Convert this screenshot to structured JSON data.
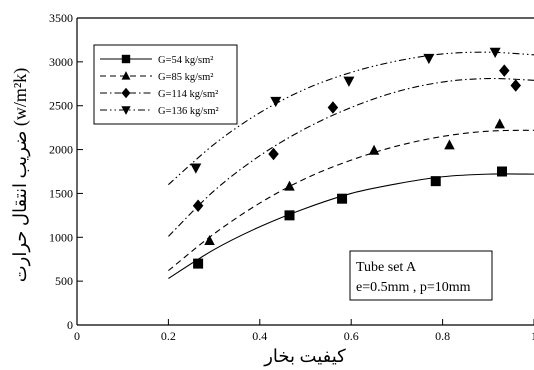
{
  "chart_data": {
    "type": "scatter",
    "title": "",
    "xlabel": "کیفیت بخار",
    "ylabel": "ضریب انتقال حرارت (w/m²k)",
    "xlim": [
      0,
      1
    ],
    "ylim": [
      0,
      3500
    ],
    "x_ticks": [
      "0",
      "0.2",
      "0.4",
      "0.6",
      "0.8",
      "1"
    ],
    "y_ticks": [
      "0",
      "500",
      "1000",
      "1500",
      "2000",
      "2500",
      "3000",
      "3500"
    ],
    "grid": false,
    "legend_position": "top-left",
    "series": [
      {
        "name": "G=54 kg/sm²",
        "marker": "square",
        "line_style": "solid",
        "x": [
          0.265,
          0.465,
          0.58,
          0.785,
          0.93
        ],
        "y": [
          700,
          1250,
          1440,
          1640,
          1750
        ],
        "fit_x": [
          0.2,
          0.3,
          0.4,
          0.5,
          0.6,
          0.7,
          0.8,
          0.9,
          1.0
        ],
        "fit_y": [
          530,
          860,
          1120,
          1330,
          1500,
          1610,
          1690,
          1720,
          1720
        ]
      },
      {
        "name": "G=85 kg/sm²",
        "marker": "triangle-up",
        "line_style": "dashed",
        "x": [
          0.29,
          0.465,
          0.65,
          0.815,
          0.925
        ],
        "y": [
          960,
          1580,
          1990,
          2050,
          2290
        ],
        "fit_x": [
          0.2,
          0.3,
          0.4,
          0.5,
          0.6,
          0.7,
          0.8,
          0.9,
          1.0
        ],
        "fit_y": [
          620,
          1040,
          1390,
          1670,
          1880,
          2040,
          2150,
          2210,
          2220
        ]
      },
      {
        "name": "G=114 kg/sm²",
        "marker": "diamond",
        "line_style": "dash-dot",
        "x": [
          0.265,
          0.43,
          0.56,
          0.935,
          0.96
        ],
        "y": [
          1360,
          1950,
          2480,
          2900,
          2730
        ],
        "fit_x": [
          0.2,
          0.3,
          0.4,
          0.5,
          0.6,
          0.7,
          0.8,
          0.9,
          1.0
        ],
        "fit_y": [
          1010,
          1530,
          1930,
          2240,
          2480,
          2660,
          2770,
          2810,
          2790
        ]
      },
      {
        "name": "G=136 kg/sm²",
        "marker": "triangle-down",
        "line_style": "dash-dot-dot",
        "x": [
          0.26,
          0.435,
          0.595,
          0.77,
          0.915
        ],
        "y": [
          1790,
          2550,
          2780,
          3040,
          3110
        ],
        "fit_x": [
          0.2,
          0.3,
          0.4,
          0.5,
          0.6,
          0.7,
          0.8,
          0.9,
          1.0
        ],
        "fit_y": [
          1600,
          2060,
          2420,
          2690,
          2880,
          3010,
          3090,
          3110,
          3080
        ]
      }
    ],
    "annotation": {
      "line1": "Tube set A",
      "line2": "e=0.5mm , p=10mm"
    }
  }
}
